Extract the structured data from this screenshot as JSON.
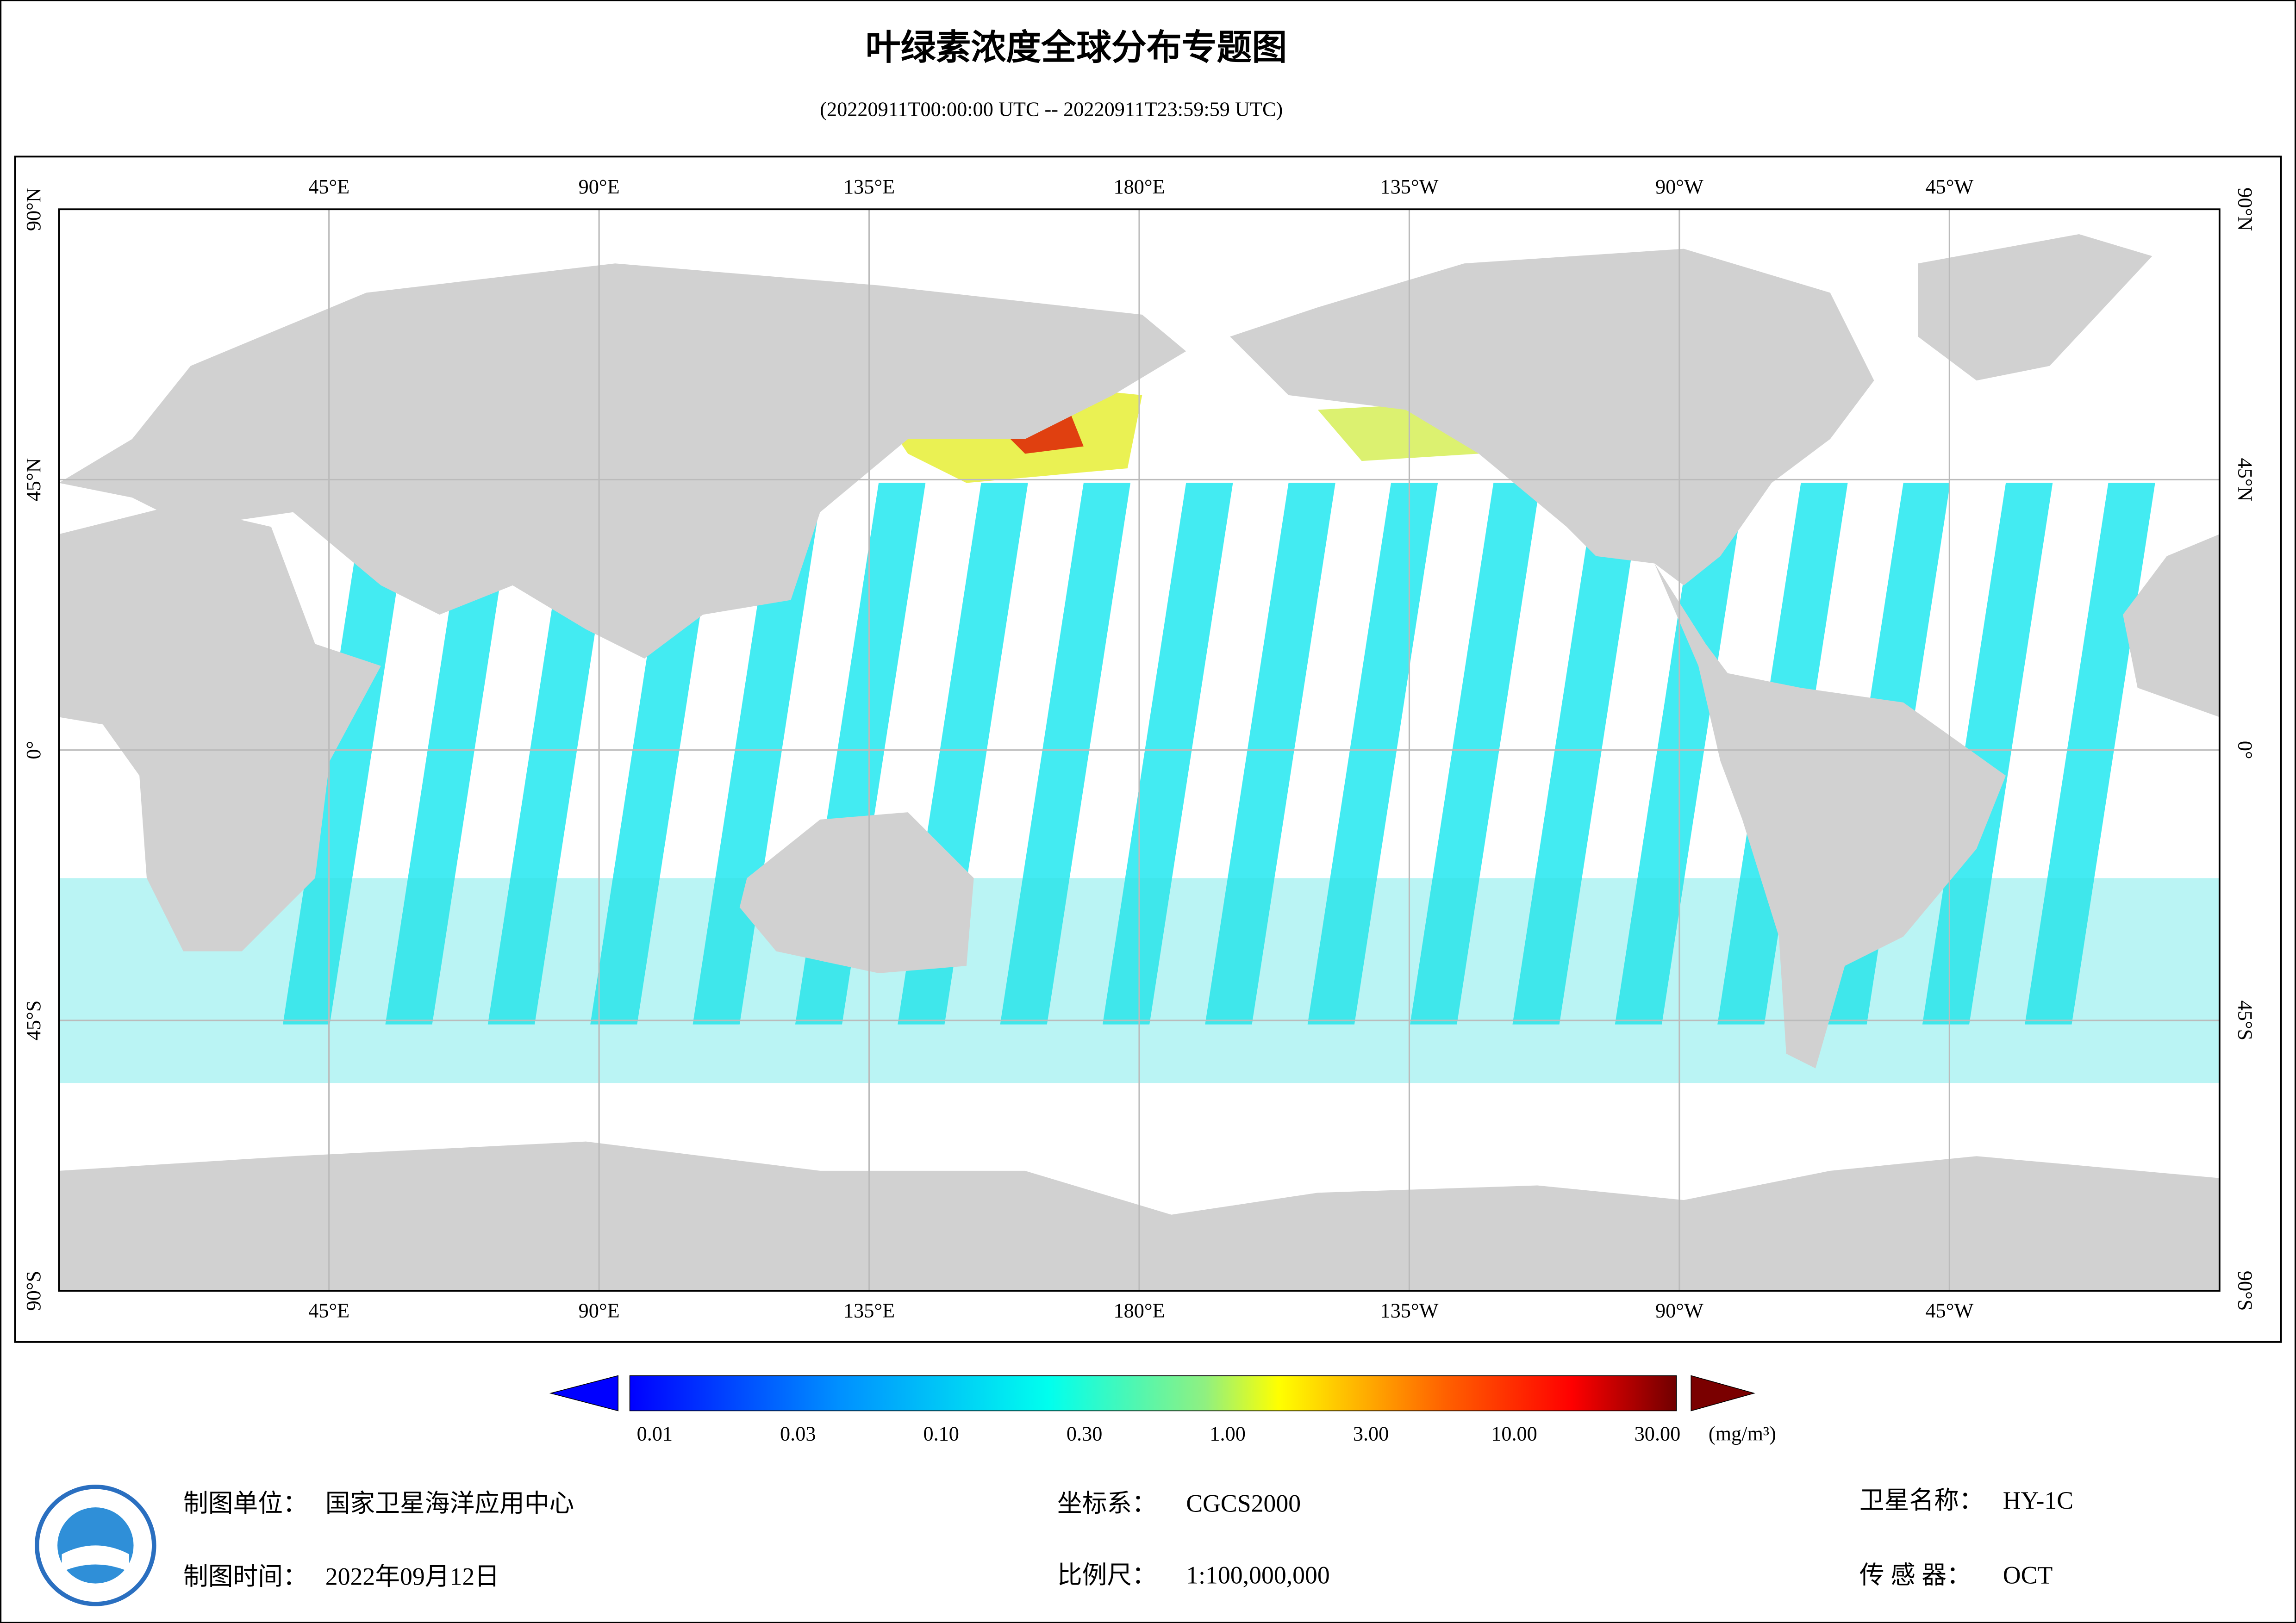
{
  "header": {
    "title": "叶绿素浓度全球分布专题图",
    "subtitle": "(20220911T00:00:00 UTC -- 20220911T23:59:59 UTC)"
  },
  "map": {
    "lon_labels": [
      "45°E",
      "90°E",
      "135°E",
      "180°E",
      "135°W",
      "90°W",
      "45°W"
    ],
    "lat_labels": [
      "90°N",
      "45°N",
      "0°",
      "45°S",
      "90°S"
    ]
  },
  "colorbar": {
    "ticks": [
      "0.01",
      "0.03",
      "0.10",
      "0.30",
      "1.00",
      "3.00",
      "10.00",
      "30.00"
    ],
    "unit": "(mg/m³)"
  },
  "footer": {
    "agency_label": "制图单位：",
    "agency": "国家卫星海洋应用中心",
    "date_label": "制图时间：",
    "date": "2022年09月12日",
    "crs_label": "坐标系：",
    "crs": "CGCS2000",
    "scale_label": "比例尺：",
    "scale": "1:100,000,000",
    "satellite_label": "卫星名称：",
    "satellite": "HY-1C",
    "sensor_label": "传 感 器：",
    "sensor": "OCT"
  }
}
